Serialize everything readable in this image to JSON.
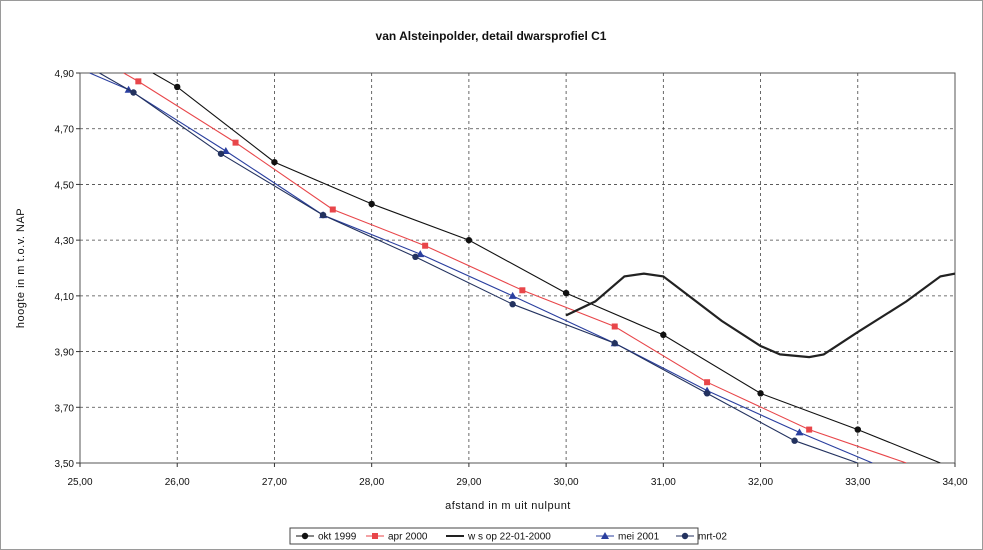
{
  "chart_data": {
    "type": "line",
    "title": "van Alsteinpolder, detail dwarsprofiel C1",
    "xlabel": "afstand in m uit nulpunt",
    "ylabel": "hoogte in m t.o.v. NAP",
    "xlim": [
      25,
      34
    ],
    "ylim": [
      3.5,
      4.9
    ],
    "x_ticks": [
      "25,00",
      "26,00",
      "27,00",
      "28,00",
      "29,00",
      "30,00",
      "31,00",
      "32,00",
      "33,00",
      "34,00"
    ],
    "y_ticks": [
      "3,50",
      "3,70",
      "3,90",
      "4,10",
      "4,30",
      "4,50",
      "4,70",
      "4,90"
    ],
    "grid": true,
    "legend_position": "bottom",
    "series": [
      {
        "name": "okt 1999",
        "color": "#111111",
        "marker": "circle",
        "points": [
          [
            25.75,
            4.9
          ],
          [
            26.0,
            4.85
          ],
          [
            27.0,
            4.58
          ],
          [
            28.0,
            4.43
          ],
          [
            29.0,
            4.3
          ],
          [
            30.0,
            4.11
          ],
          [
            31.0,
            3.96
          ],
          [
            32.0,
            3.75
          ],
          [
            33.0,
            3.62
          ],
          [
            33.85,
            3.5
          ]
        ]
      },
      {
        "name": "apr 2000",
        "color": "#e8464a",
        "marker": "square",
        "points": [
          [
            25.45,
            4.9
          ],
          [
            25.6,
            4.87
          ],
          [
            26.6,
            4.65
          ],
          [
            27.6,
            4.41
          ],
          [
            28.55,
            4.28
          ],
          [
            29.55,
            4.12
          ],
          [
            30.5,
            3.99
          ],
          [
            31.45,
            3.79
          ],
          [
            32.5,
            3.62
          ],
          [
            33.5,
            3.5
          ]
        ]
      },
      {
        "name": "w s op 22-01-2000",
        "color": "#222222",
        "marker": "none",
        "points": [
          [
            30.0,
            4.03
          ],
          [
            30.3,
            4.08
          ],
          [
            30.6,
            4.17
          ],
          [
            30.8,
            4.18
          ],
          [
            31.0,
            4.17
          ],
          [
            31.3,
            4.09
          ],
          [
            31.6,
            4.01
          ],
          [
            32.0,
            3.92
          ],
          [
            32.2,
            3.89
          ],
          [
            32.5,
            3.88
          ],
          [
            32.65,
            3.89
          ],
          [
            33.0,
            3.97
          ],
          [
            33.5,
            4.08
          ],
          [
            33.85,
            4.17
          ],
          [
            34.0,
            4.18
          ]
        ]
      },
      {
        "name": "mei 2001",
        "color": "#2a3f9f",
        "marker": "triangle",
        "points": [
          [
            25.1,
            4.9
          ],
          [
            25.5,
            4.84
          ],
          [
            26.5,
            4.62
          ],
          [
            27.5,
            4.39
          ],
          [
            28.5,
            4.25
          ],
          [
            29.45,
            4.1
          ],
          [
            30.5,
            3.93
          ],
          [
            31.45,
            3.76
          ],
          [
            32.4,
            3.61
          ],
          [
            33.15,
            3.5
          ]
        ]
      },
      {
        "name": "mrt-02",
        "color": "#23325f",
        "marker": "circle",
        "points": [
          [
            25.2,
            4.9
          ],
          [
            25.55,
            4.83
          ],
          [
            26.45,
            4.61
          ],
          [
            27.5,
            4.39
          ],
          [
            28.45,
            4.24
          ],
          [
            29.45,
            4.07
          ],
          [
            30.5,
            3.93
          ],
          [
            31.45,
            3.75
          ],
          [
            32.35,
            3.58
          ],
          [
            33.0,
            3.5
          ]
        ]
      }
    ]
  }
}
